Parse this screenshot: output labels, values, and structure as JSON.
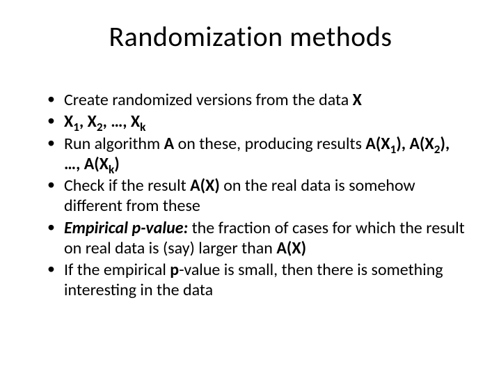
{
  "title": "Randomization methods",
  "bullets": [
    {
      "html": "Create randomized versions from the data <span class=\"b\">X</span>"
    },
    {
      "html": "<span class=\"b\">X<sub>1</sub>, X<sub>2</sub>, …, X<sub>k</sub></span>"
    },
    {
      "html": "Run algorithm <span class=\"b\">A</span> on these, producing results <span class=\"b\">A(X<sub>1</sub>), A(X<sub>2</sub>), …, A(X<sub>k</sub>)</span>"
    },
    {
      "html": "Check if the result <span class=\"b\">A(X)</span> on the real data is somehow different from these"
    },
    {
      "html": "<span class=\"b i\">Empirical p-value:</span> the fraction of cases for which the result on real data is (say) larger than <span class=\"b\">A(X)</span>"
    },
    {
      "html": "If the empirical <span class=\"b\">p</span>-value is small, then there is something interesting in the data"
    }
  ],
  "colors": {
    "background": "#ffffff",
    "text": "#000000"
  },
  "typography": {
    "title_fontsize": 40,
    "body_fontsize": 24,
    "font_family": "Calibri"
  }
}
